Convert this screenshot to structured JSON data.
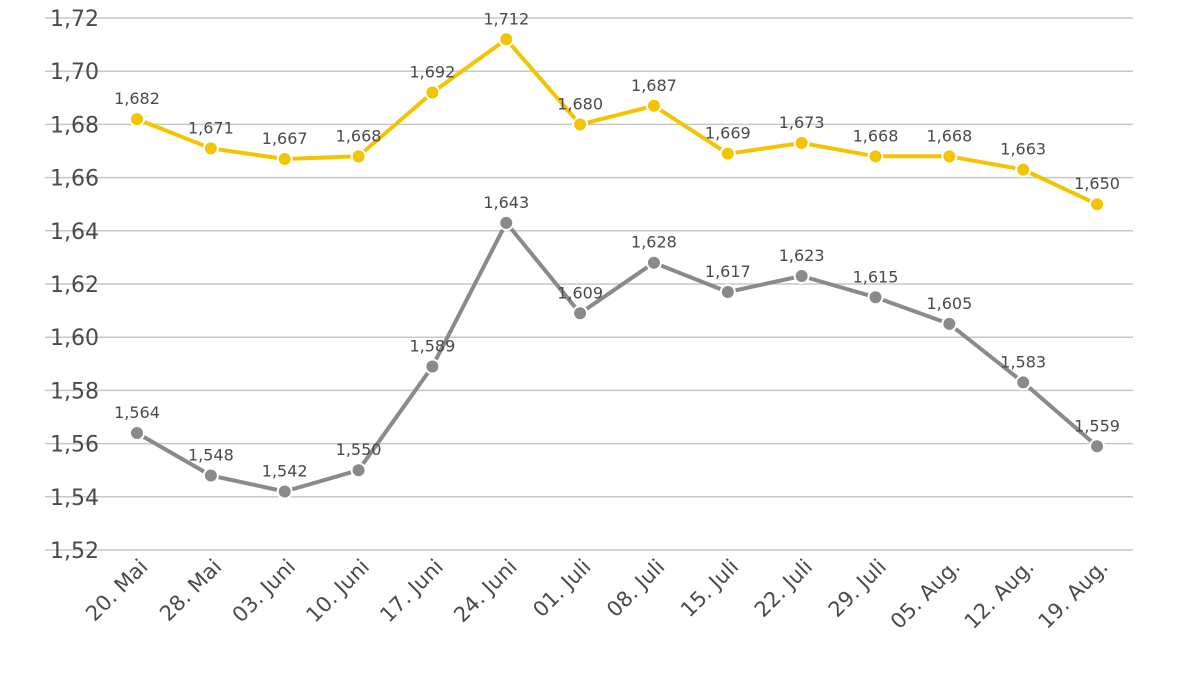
{
  "chart_data": {
    "type": "line",
    "title": "",
    "xlabel": "",
    "ylabel": "",
    "grid": true,
    "ylim": [
      1.52,
      1.72
    ],
    "ytick_values": [
      1.52,
      1.54,
      1.56,
      1.58,
      1.6,
      1.62,
      1.64,
      1.66,
      1.68,
      1.7,
      1.72
    ],
    "ytick_labels": [
      "1,52",
      "1,54",
      "1,56",
      "1,58",
      "1,60",
      "1,62",
      "1,64",
      "1,66",
      "1,68",
      "1,70",
      "1,72"
    ],
    "categories": [
      "20. Mai",
      "28. Mai",
      "03. Juni",
      "10. Juni",
      "17. Juni",
      "24. Juni",
      "01. Juli",
      "08. Juli",
      "15. Juli",
      "22. Juli",
      "29. Juli",
      "05. Aug.",
      "12. Aug.",
      "19. Aug."
    ],
    "series": [
      {
        "name": "yellow-series",
        "color": "#f2c500",
        "values": [
          1.682,
          1.671,
          1.667,
          1.668,
          1.692,
          1.712,
          1.68,
          1.687,
          1.669,
          1.673,
          1.668,
          1.668,
          1.663,
          1.65
        ],
        "labels": [
          "1,682",
          "1,671",
          "1,667",
          "1,668",
          "1,692",
          "1,712",
          "1,680",
          "1,687",
          "1,669",
          "1,673",
          "1,668",
          "1,668",
          "1,663",
          "1,650"
        ]
      },
      {
        "name": "gray-series",
        "color": "#8a8a8a",
        "values": [
          1.564,
          1.548,
          1.542,
          1.55,
          1.589,
          1.643,
          1.609,
          1.628,
          1.617,
          1.623,
          1.615,
          1.605,
          1.583,
          1.559
        ],
        "labels": [
          "1,564",
          "1,548",
          "1,542",
          "1,550",
          "1,589",
          "1,643",
          "1,609",
          "1,628",
          "1,617",
          "1,623",
          "1,615",
          "1,605",
          "1,583",
          "1,559"
        ]
      }
    ]
  }
}
